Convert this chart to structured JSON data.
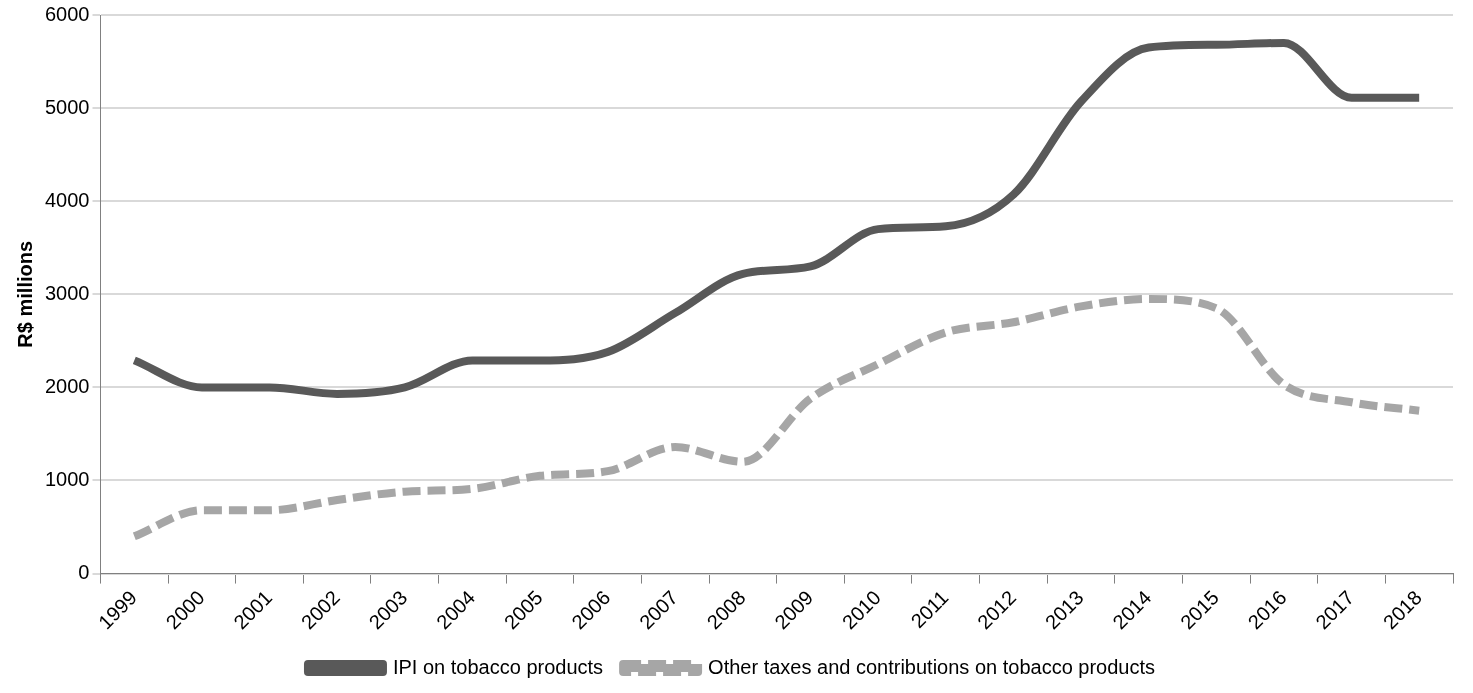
{
  "chart_data": {
    "type": "line",
    "ylabel": "R$ millions",
    "categories": [
      "1999",
      "2000",
      "2001",
      "2002",
      "2003",
      "2004",
      "2005",
      "2006",
      "2007",
      "2008",
      "2009",
      "2010",
      "2011",
      "2012",
      "2013",
      "2014",
      "2015",
      "2016",
      "2017",
      "2018"
    ],
    "series": [
      {
        "name": "IPI on tobacco products",
        "color": "#595959",
        "line_style": "solid",
        "values": [
          2290,
          2000,
          2000,
          1930,
          2000,
          2290,
          2290,
          2380,
          2800,
          3220,
          3300,
          3700,
          3730,
          4070,
          5070,
          5650,
          5680,
          5700,
          5110,
          5110
        ]
      },
      {
        "name": "Other taxes and contributions on tobacco products",
        "color": "#a6a6a6",
        "line_style": "dashed",
        "values": [
          400,
          680,
          680,
          790,
          880,
          910,
          1050,
          1100,
          1360,
          1200,
          1880,
          2250,
          2590,
          2700,
          2870,
          2950,
          2850,
          2030,
          1840,
          1750
        ]
      }
    ],
    "ylim": [
      0,
      6000
    ],
    "yticks": [
      0,
      1000,
      2000,
      3000,
      4000,
      5000,
      6000
    ],
    "grid": "y",
    "legend": "bottom",
    "marker": "none"
  }
}
